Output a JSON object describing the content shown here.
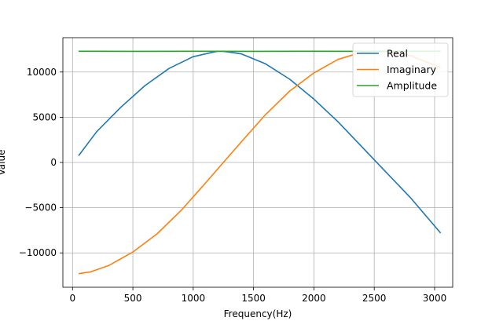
{
  "chart_data": {
    "type": "line",
    "title": "",
    "xlabel": "Frequency(Hz)",
    "ylabel": "Value",
    "xlim": [
      -80,
      3150
    ],
    "ylim": [
      -13800,
      13800
    ],
    "xticks": [
      0,
      500,
      1000,
      1500,
      2000,
      2500,
      3000
    ],
    "xtick_labels": [
      "0",
      "500",
      "1000",
      "1500",
      "2000",
      "2500",
      "3000"
    ],
    "yticks": [
      -10000,
      -5000,
      0,
      5000,
      10000
    ],
    "ytick_labels": [
      "−10000",
      "−5000",
      "0",
      "5000",
      "10000"
    ],
    "grid": true,
    "legend_position": "top-right",
    "series": [
      {
        "name": "Real",
        "color": "#1f77b4",
        "x": [
          50,
          200,
          400,
          600,
          800,
          1000,
          1200,
          1250,
          1400,
          1600,
          1800,
          2000,
          2200,
          2400,
          2600,
          2800,
          3050
        ],
        "values": [
          750,
          3400,
          6100,
          8500,
          10400,
          11700,
          12300,
          12300,
          12000,
          10900,
          9200,
          7000,
          4500,
          1700,
          -1100,
          -3900,
          -7800
        ]
      },
      {
        "name": "Imaginary",
        "color": "#ff7f0e",
        "x": [
          50,
          150,
          300,
          500,
          700,
          900,
          1100,
          1250,
          1400,
          1600,
          1800,
          2000,
          2200,
          2400,
          2600,
          2800,
          3050
        ],
        "values": [
          -12300,
          -12100,
          -11400,
          -9900,
          -7900,
          -5300,
          -2300,
          0,
          2300,
          5300,
          7900,
          9900,
          11400,
          12200,
          12300,
          11800,
          10500
        ]
      },
      {
        "name": "Amplitude",
        "color": "#2ca02c",
        "x": [
          50,
          500,
          1000,
          1500,
          2000,
          2500,
          3050
        ],
        "values": [
          12300,
          12290,
          12300,
          12290,
          12300,
          12290,
          12300
        ]
      }
    ]
  }
}
